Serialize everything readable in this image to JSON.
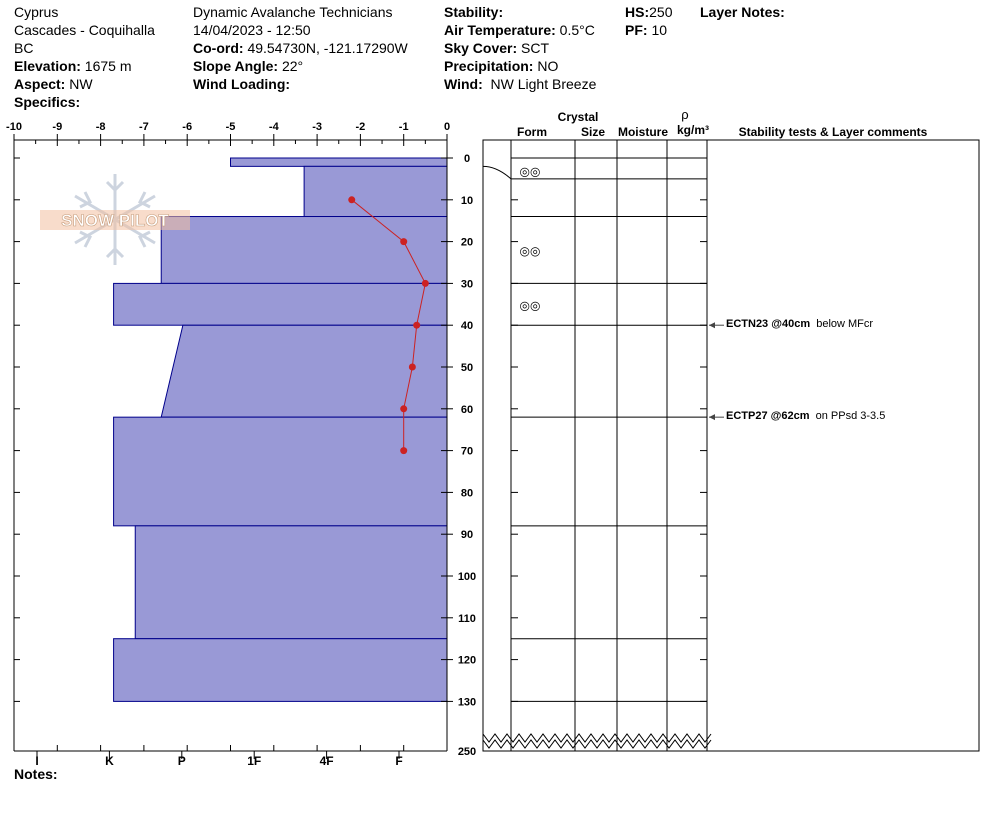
{
  "header": {
    "location": "Cyprus",
    "range": "Cascades - Coquihalla",
    "province": "BC",
    "elevation_label": "Elevation:",
    "elevation": "1675 m",
    "aspect_label": "Aspect:",
    "aspect": "NW",
    "specifics_label": "Specifics:",
    "organization": "Dynamic Avalanche Technicians",
    "datetime": "14/04/2023 - 12:50",
    "coord_label": "Co-ord:",
    "coord": "49.54730N, -121.17290W",
    "slope_label": "Slope Angle:",
    "slope": "22°",
    "wind_loading_label": "Wind Loading:",
    "stability_label": "Stability:",
    "air_temp_label": "Air Temperature:",
    "air_temp": "0.5°C",
    "sky_label": "Sky Cover:",
    "sky": "SCT",
    "precip_label": "Precipitation:",
    "precip": "NO",
    "wind_label": "Wind:",
    "wind": "NW Light Breeze",
    "hs_label": "HS:",
    "hs": "250",
    "pf_label": "PF:",
    "pf": "10",
    "layer_notes_label": "Layer Notes:"
  },
  "logo_text": "SNOW PILOT",
  "notes_label": "Notes:",
  "columns": {
    "crystal": "Crystal",
    "form": "Form",
    "size": "Size",
    "moisture": "Moisture",
    "rho": "ρ",
    "density_unit": "kg/m³",
    "comments": "Stability tests & Layer comments"
  },
  "comments": [
    {
      "test": "ECTN23 @40cm",
      "note": "below MFcr",
      "depth": 40
    },
    {
      "test": "ECTP27 @62cm",
      "note": "on PPsd 3-3.5",
      "depth": 62
    }
  ],
  "chart_data": {
    "type": "snow-profile",
    "temp_axis": {
      "min": -10,
      "max": 0,
      "ticks": [
        "-10",
        "-9",
        "-8",
        "-7",
        "-6",
        "-5",
        "-4",
        "-3",
        "-2",
        "-1",
        "0"
      ]
    },
    "depth_axis": {
      "ticks": [
        "0",
        "10",
        "20",
        "30",
        "40",
        "50",
        "60",
        "70",
        "80",
        "90",
        "100",
        "110",
        "120",
        "130"
      ],
      "bottom_label": "250"
    },
    "hardness_labels": [
      "I",
      "K",
      "P",
      "1F",
      "4F",
      "F"
    ],
    "hardness_profile": [
      {
        "top": 0,
        "bottom": 2,
        "temp_left": -5.0
      },
      {
        "top": 2,
        "bottom": 14,
        "temp_left": -3.3
      },
      {
        "top": 14,
        "bottom": 30,
        "temp_left": -6.6
      },
      {
        "top": 30,
        "bottom": 40,
        "temp_left": -7.7
      },
      {
        "top": 40,
        "bottom": 62,
        "temp_left_top": -6.1,
        "temp_left_bottom": -6.6
      },
      {
        "top": 62,
        "bottom": 88,
        "temp_left": -7.7
      },
      {
        "top": 88,
        "bottom": 115,
        "temp_left": -7.2
      },
      {
        "top": 115,
        "bottom": 130,
        "temp_left": -7.7
      }
    ],
    "temperature_series": {
      "name": "",
      "points": [
        {
          "temp": -2.2,
          "depth": 10
        },
        {
          "temp": -1.0,
          "depth": 20
        },
        {
          "temp": -0.5,
          "depth": 30
        },
        {
          "temp": -0.7,
          "depth": 40
        },
        {
          "temp": -0.8,
          "depth": 50
        },
        {
          "temp": -1.0,
          "depth": 60
        },
        {
          "temp": -1.0,
          "depth": 70
        }
      ]
    },
    "layer_boundaries": [
      0,
      5,
      14,
      30,
      40,
      62,
      88,
      115,
      130
    ],
    "grain_forms": [
      {
        "depth": 3,
        "symbol": "◎◎"
      },
      {
        "depth": 22,
        "symbol": "◎◎"
      },
      {
        "depth": 35,
        "symbol": "◎◎"
      }
    ],
    "colors": {
      "fill": "#9999d6",
      "stroke": "#00008b",
      "temp": "#cc2222"
    }
  }
}
